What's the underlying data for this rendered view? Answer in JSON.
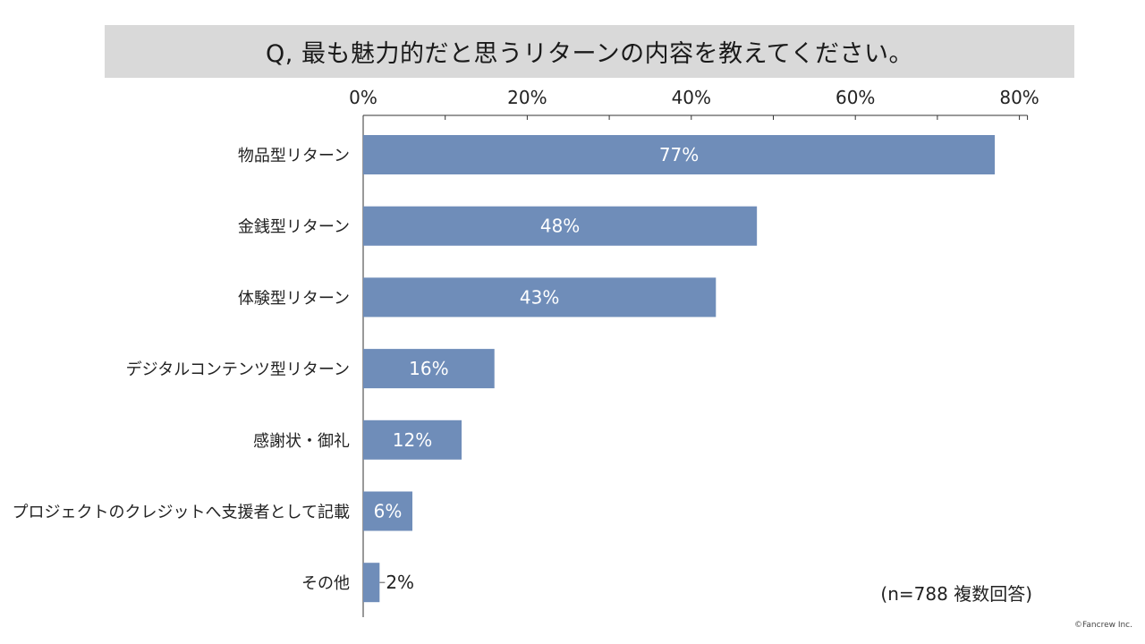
{
  "title": "Q, 最も魅力的だと思うリターンの内容を教えてください。",
  "note": "(n=788 複数回答)",
  "copyright": "©Fancrew Inc.",
  "colors": {
    "bar": "#6f8db9",
    "title_bg": "#d9d9d9",
    "axis": "#333333"
  },
  "chart_data": {
    "type": "bar",
    "orientation": "horizontal",
    "categories": [
      "物品型リターン",
      "金銭型リターン",
      "体験型リターン",
      "デジタルコンテンツ型リターン",
      "感謝状・御礼",
      "プロジェクトのクレジットへ支援者として記載",
      "その他"
    ],
    "values": [
      77,
      48,
      43,
      16,
      12,
      6,
      2
    ],
    "data_labels": [
      "77%",
      "48%",
      "43%",
      "16%",
      "12%",
      "6%",
      "2%"
    ],
    "xlim": [
      0,
      80
    ],
    "xticks": [
      0,
      20,
      40,
      60,
      80
    ],
    "xtick_labels": [
      "0%",
      "20%",
      "40%",
      "60%",
      "80%"
    ],
    "x_axis_position": "top",
    "grid": false
  }
}
